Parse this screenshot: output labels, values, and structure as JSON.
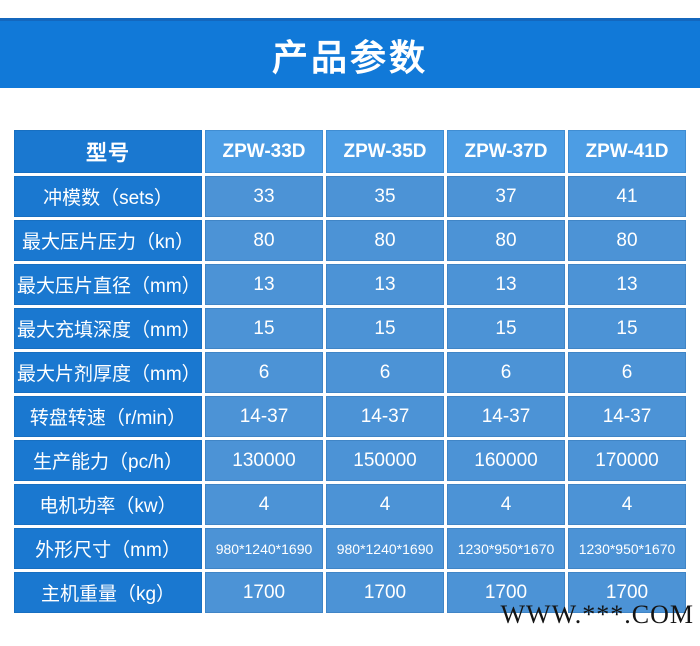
{
  "page": {
    "title": "产品参数",
    "watermark": "WWW.***.COM"
  },
  "colors": {
    "banner_blue": "#1179d8",
    "banner_edge_blue": "#1467bd",
    "label_cell_blue": "#1a78d0",
    "header_cell_blue": "#4c9de4",
    "value_cell_blue": "#4c93d6",
    "text_white": "#ffffff",
    "watermark_black": "#141414"
  },
  "table": {
    "header": {
      "model_col": "型号",
      "models": [
        "ZPW-33D",
        "ZPW-35D",
        "ZPW-37D",
        "ZPW-41D"
      ]
    },
    "rows": [
      {
        "label": "冲模数（sets）",
        "values": [
          "33",
          "35",
          "37",
          "41"
        ]
      },
      {
        "label": "最大压片压力（kn）",
        "values": [
          "80",
          "80",
          "80",
          "80"
        ]
      },
      {
        "label": "最大压片直径（mm）",
        "values": [
          "13",
          "13",
          "13",
          "13"
        ]
      },
      {
        "label": "最大充填深度（mm）",
        "values": [
          "15",
          "15",
          "15",
          "15"
        ]
      },
      {
        "label": "最大片剂厚度（mm）",
        "values": [
          "6",
          "6",
          "6",
          "6"
        ]
      },
      {
        "label": "转盘转速（r/min）",
        "values": [
          "14-37",
          "14-37",
          "14-37",
          "14-37"
        ]
      },
      {
        "label": "生产能力（pc/h）",
        "values": [
          "130000",
          "150000",
          "160000",
          "170000"
        ]
      },
      {
        "label": "电机功率（kw）",
        "values": [
          "4",
          "4",
          "4",
          "4"
        ]
      },
      {
        "label": "外形尺寸（mm）",
        "values": [
          "980*1240*1690",
          "980*1240*1690",
          "1230*950*1670",
          "1230*950*1670"
        ]
      },
      {
        "label": "主机重量（kg）",
        "values": [
          "1700",
          "1700",
          "1700",
          "1700"
        ]
      }
    ]
  }
}
